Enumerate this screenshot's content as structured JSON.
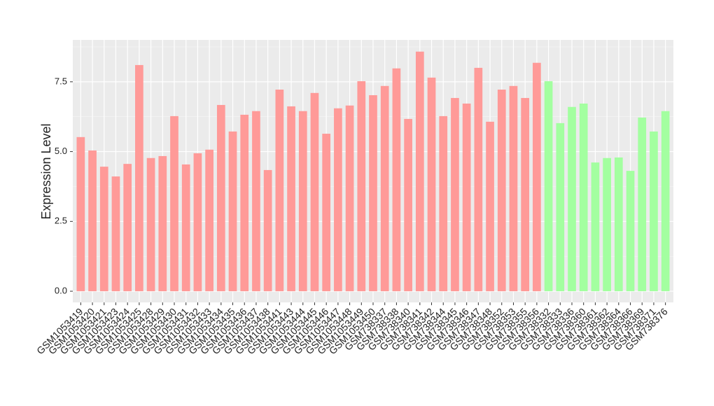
{
  "chart_data": {
    "type": "bar",
    "y_label": "Expression Level",
    "categories": [
      "GSM1053419",
      "GSM1053420",
      "GSM1053421",
      "GSM1053423",
      "GSM1053424",
      "GSM1053425",
      "GSM1053428",
      "GSM1053429",
      "GSM1053430",
      "GSM1053431",
      "GSM1053432",
      "GSM1053433",
      "GSM1053434",
      "GSM1053435",
      "GSM1053436",
      "GSM1053437",
      "GSM1053438",
      "GSM1053441",
      "GSM1053443",
      "GSM1053444",
      "GSM1053445",
      "GSM1053446",
      "GSM1053447",
      "GSM1053448",
      "GSM1053449",
      "GSM1053450",
      "GSM738337",
      "GSM738338",
      "GSM738340",
      "GSM738341",
      "GSM738342",
      "GSM738344",
      "GSM738345",
      "GSM738346",
      "GSM738347",
      "GSM738348",
      "GSM738352",
      "GSM738353",
      "GSM738355",
      "GSM738356",
      "GSM738332",
      "GSM738333",
      "GSM738336",
      "GSM738360",
      "GSM738361",
      "GSM738362",
      "GSM738364",
      "GSM738366",
      "GSM738369",
      "GSM738371",
      "GSM738376"
    ],
    "values": [
      5.52,
      5.04,
      4.46,
      4.11,
      4.56,
      8.1,
      4.77,
      4.84,
      6.27,
      4.54,
      4.94,
      5.07,
      6.67,
      5.72,
      6.32,
      6.45,
      4.34,
      7.22,
      6.62,
      6.45,
      7.1,
      5.64,
      6.55,
      6.65,
      7.52,
      7.02,
      7.35,
      7.98,
      6.17,
      8.58,
      7.65,
      6.27,
      6.92,
      6.72,
      8.0,
      6.07,
      7.22,
      7.35,
      6.92,
      8.18,
      7.52,
      6.02,
      6.6,
      6.72,
      4.61,
      4.77,
      4.79,
      4.31,
      6.22,
      5.72,
      6.45
    ],
    "colors": [
      "#ff9a98",
      "#ff9a98",
      "#ff9a98",
      "#ff9a98",
      "#ff9a98",
      "#ff9a98",
      "#ff9a98",
      "#ff9a98",
      "#ff9a98",
      "#ff9a98",
      "#ff9a98",
      "#ff9a98",
      "#ff9a98",
      "#ff9a98",
      "#ff9a98",
      "#ff9a98",
      "#ff9a98",
      "#ff9a98",
      "#ff9a98",
      "#ff9a98",
      "#ff9a98",
      "#ff9a98",
      "#ff9a98",
      "#ff9a98",
      "#ff9a98",
      "#ff9a98",
      "#ff9a98",
      "#ff9a98",
      "#ff9a98",
      "#ff9a98",
      "#ff9a98",
      "#ff9a98",
      "#ff9a98",
      "#ff9a98",
      "#ff9a98",
      "#ff9a98",
      "#ff9a98",
      "#ff9a98",
      "#ff9a98",
      "#ff9a98",
      "#a3ffa0",
      "#a3ffa0",
      "#a3ffa0",
      "#a3ffa0",
      "#a3ffa0",
      "#a3ffa0",
      "#a3ffa0",
      "#a3ffa0",
      "#a3ffa0",
      "#a3ffa0",
      "#a3ffa0"
    ],
    "ylim": [
      -0.4,
      9.0
    ],
    "yticks": [
      {
        "value": 0,
        "label": "0.0"
      },
      2.5,
      {
        "value": 5,
        "label": "5.0"
      },
      7.5
    ],
    "grid": true
  }
}
